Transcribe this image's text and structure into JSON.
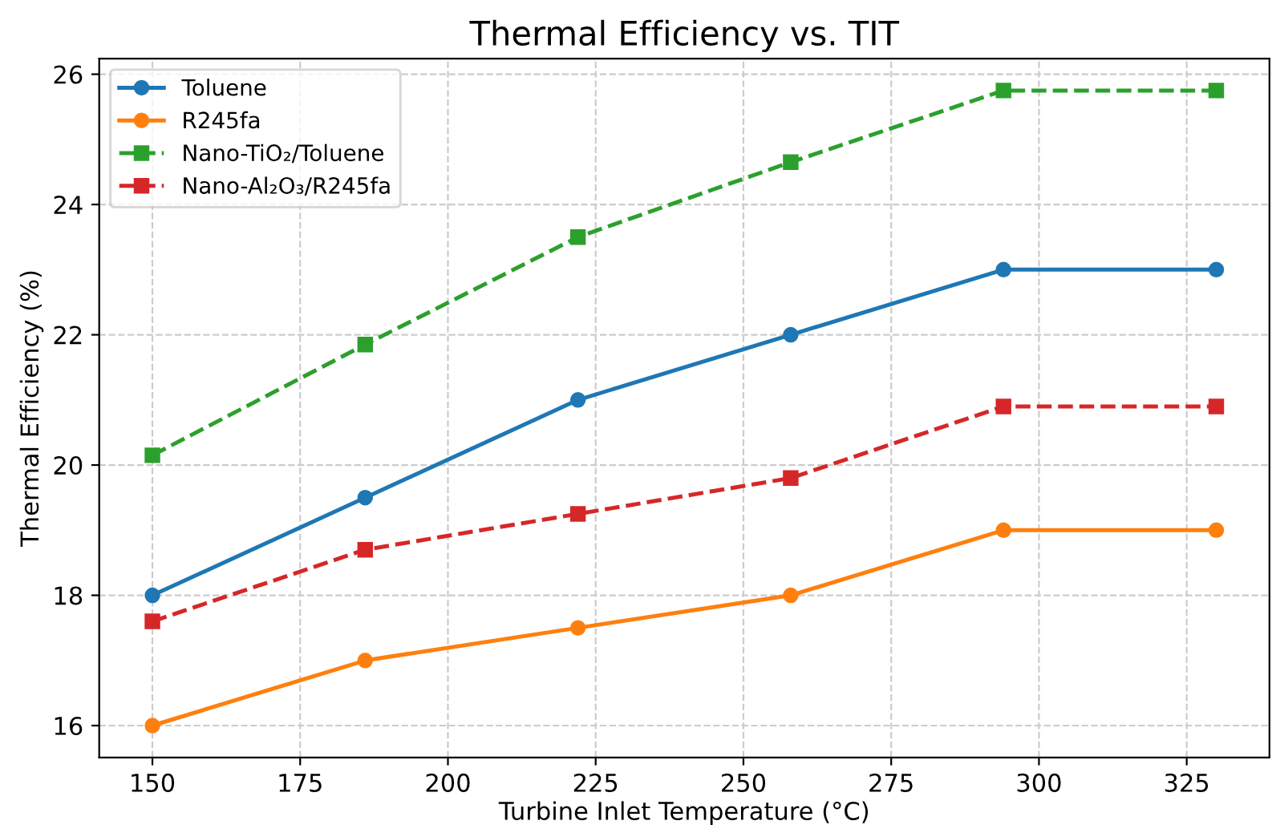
{
  "chart_data": {
    "type": "line",
    "title": "Thermal Efficiency vs. TIT",
    "xlabel": "Turbine Inlet Temperature (°C)",
    "ylabel": "Thermal Efficiency (%)",
    "x": [
      150,
      186,
      222,
      258,
      294,
      330
    ],
    "series": [
      {
        "name": "Toluene",
        "color": "#1f77b4",
        "values": [
          18,
          19.5,
          21,
          22,
          23,
          23
        ],
        "marker": "circle",
        "line_style": "solid"
      },
      {
        "name": "R245fa",
        "color": "#ff7f0e",
        "values": [
          16,
          17,
          17.5,
          18,
          19,
          19
        ],
        "marker": "circle",
        "line_style": "solid"
      },
      {
        "name": "Nano-TiO₂/Toluene",
        "color": "#2ca02c",
        "values": [
          20.15,
          21.85,
          23.5,
          24.65,
          25.75,
          25.75
        ],
        "marker": "square",
        "line_style": "dashed"
      },
      {
        "name": "Nano-Al₂O₃/R245fa",
        "color": "#d62728",
        "values": [
          17.6,
          18.7,
          19.25,
          19.8,
          20.9,
          20.9
        ],
        "marker": "square",
        "line_style": "dashed"
      }
    ],
    "xlim": [
      141,
      339
    ],
    "ylim": [
      15.51,
      26.24
    ],
    "xticks": [
      150,
      175,
      200,
      225,
      250,
      275,
      300,
      325
    ],
    "yticks": [
      16,
      18,
      20,
      22,
      24,
      26
    ],
    "grid": true,
    "legend": "top left"
  }
}
